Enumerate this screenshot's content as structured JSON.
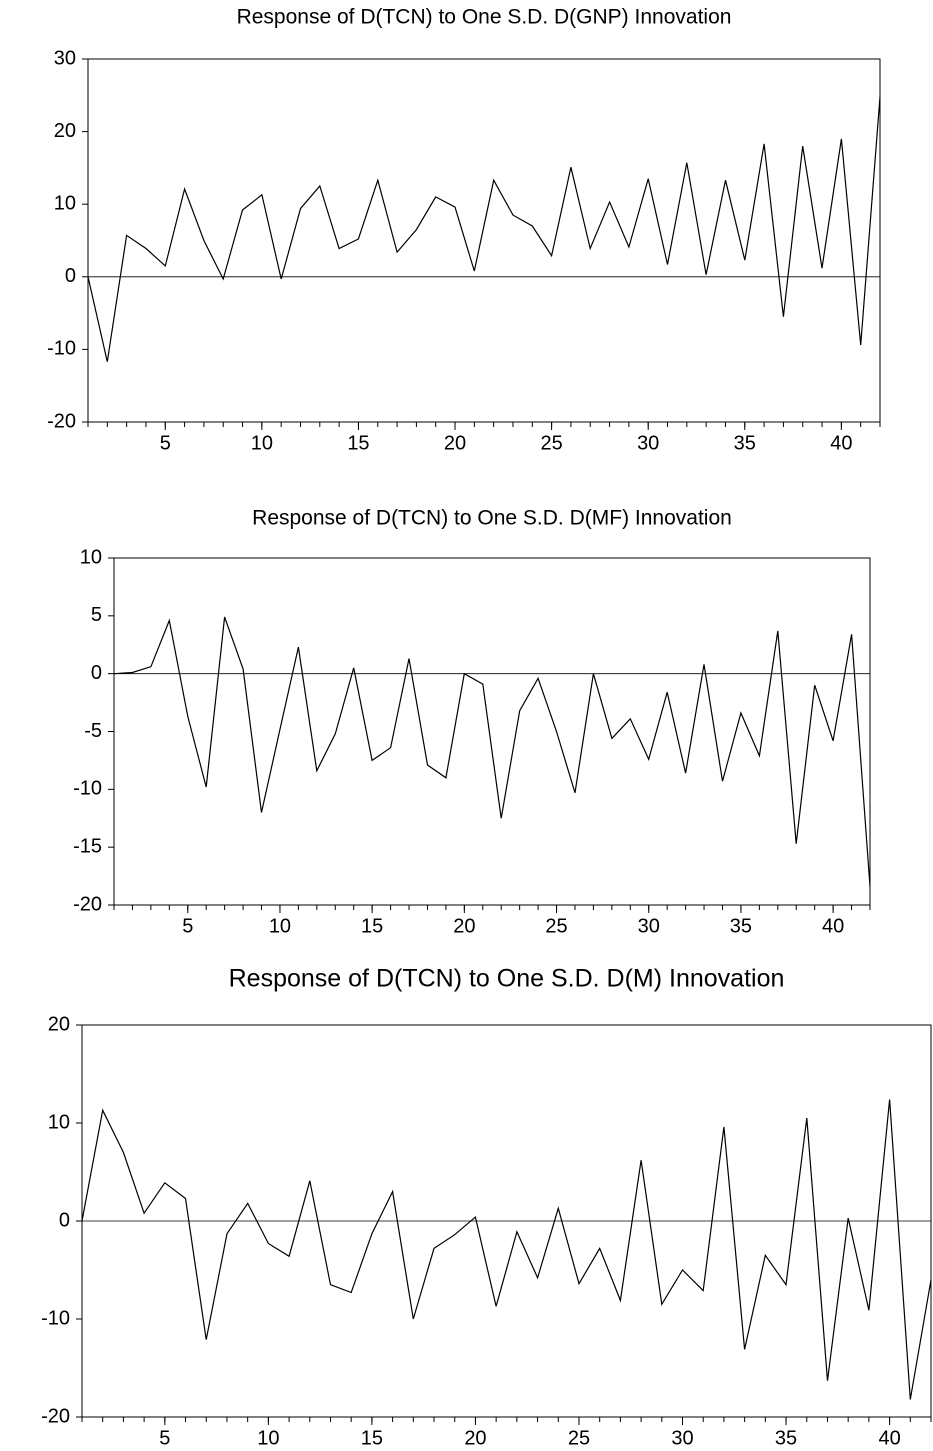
{
  "chart_data": [
    {
      "type": "line",
      "title": "Response of D(TCN) to One S.D. D(GNP) Innovation",
      "x": [
        1,
        2,
        3,
        4,
        5,
        6,
        7,
        8,
        9,
        10,
        11,
        12,
        13,
        14,
        15,
        16,
        17,
        18,
        19,
        20,
        21,
        22,
        23,
        24,
        25,
        26,
        27,
        28,
        29,
        30,
        31,
        32,
        33,
        34,
        35,
        36,
        37,
        38,
        39,
        40,
        41,
        42
      ],
      "values": [
        0,
        -11.7,
        5.7,
        3.9,
        1.5,
        12.1,
        5,
        -0.3,
        9.2,
        11.3,
        -0.3,
        9.4,
        12.5,
        3.9,
        5.2,
        13.3,
        3.4,
        6.5,
        11,
        9.6,
        0.8,
        13.3,
        8.5,
        7,
        2.9,
        15.1,
        3.9,
        10.3,
        4.1,
        13.5,
        1.7,
        15.7,
        0.3,
        13.3,
        2.3,
        18.3,
        -5.5,
        18,
        1.2,
        19,
        -9.4,
        24.8
      ],
      "color": "#000000",
      "xlim": [
        1,
        42
      ],
      "xticks": [
        5,
        10,
        15,
        20,
        25,
        30,
        35,
        40
      ],
      "ylim": [
        -20,
        30
      ],
      "yticks": [
        -20,
        -10,
        0,
        10,
        20,
        30
      ],
      "grid": false,
      "zero_line": true
    },
    {
      "type": "line",
      "title": "Response of D(TCN) to One S.D. D(MF) Innovation",
      "x": [
        1,
        2,
        3,
        4,
        5,
        6,
        7,
        8,
        9,
        10,
        11,
        12,
        13,
        14,
        15,
        16,
        17,
        18,
        19,
        20,
        21,
        22,
        23,
        24,
        25,
        26,
        27,
        28,
        29,
        30,
        31,
        32,
        33,
        34,
        35,
        36,
        37,
        38,
        39,
        40,
        41,
        42
      ],
      "values": [
        0,
        0.1,
        0.6,
        4.6,
        -3.7,
        -9.8,
        4.9,
        0.4,
        -12,
        -4.8,
        2.3,
        -8.4,
        -5.2,
        0.5,
        -7.5,
        -6.4,
        1.3,
        -7.9,
        -9,
        0,
        -0.9,
        -12.5,
        -3.2,
        -0.4,
        -5,
        -10.3,
        0,
        -5.6,
        -3.9,
        -7.4,
        -1.6,
        -8.6,
        0.8,
        -9.3,
        -3.4,
        -7.1,
        3.7,
        -14.7,
        -1,
        -5.8,
        3.4,
        -18.4
      ],
      "color": "#000000",
      "xlim": [
        1,
        42
      ],
      "xticks": [
        5,
        10,
        15,
        20,
        25,
        30,
        35,
        40
      ],
      "ylim": [
        -20,
        10
      ],
      "yticks": [
        -20,
        -15,
        -10,
        -5,
        0,
        5,
        10
      ],
      "grid": false,
      "zero_line": true
    },
    {
      "type": "line",
      "title": "Response of D(TCN) to One S.D. D(M) Innovation",
      "x": [
        1,
        2,
        3,
        4,
        5,
        6,
        7,
        8,
        9,
        10,
        11,
        12,
        13,
        14,
        15,
        16,
        17,
        18,
        19,
        20,
        21,
        22,
        23,
        24,
        25,
        26,
        27,
        28,
        29,
        30,
        31,
        32,
        33,
        34,
        35,
        36,
        37,
        38,
        39,
        40,
        41,
        42
      ],
      "values": [
        0,
        11.3,
        7,
        0.8,
        3.9,
        2.3,
        -12.1,
        -1.3,
        1.8,
        -2.3,
        -3.6,
        4.1,
        -6.5,
        -7.3,
        -1.3,
        3,
        -10,
        -2.8,
        -1.4,
        0.4,
        -8.7,
        -1.1,
        -5.8,
        1.3,
        -6.4,
        -2.8,
        -8.1,
        6.2,
        -8.5,
        -5,
        -7.1,
        9.6,
        -13.1,
        -3.5,
        -6.5,
        10.5,
        -16.3,
        0.3,
        -9.1,
        12.4,
        -18.2,
        -6
      ],
      "color": "#000000",
      "xlim": [
        1,
        42
      ],
      "xticks": [
        5,
        10,
        15,
        20,
        25,
        30,
        35,
        40
      ],
      "ylim": [
        -20,
        20
      ],
      "yticks": [
        -20,
        -10,
        0,
        10,
        20
      ],
      "grid": false,
      "zero_line": true
    }
  ]
}
